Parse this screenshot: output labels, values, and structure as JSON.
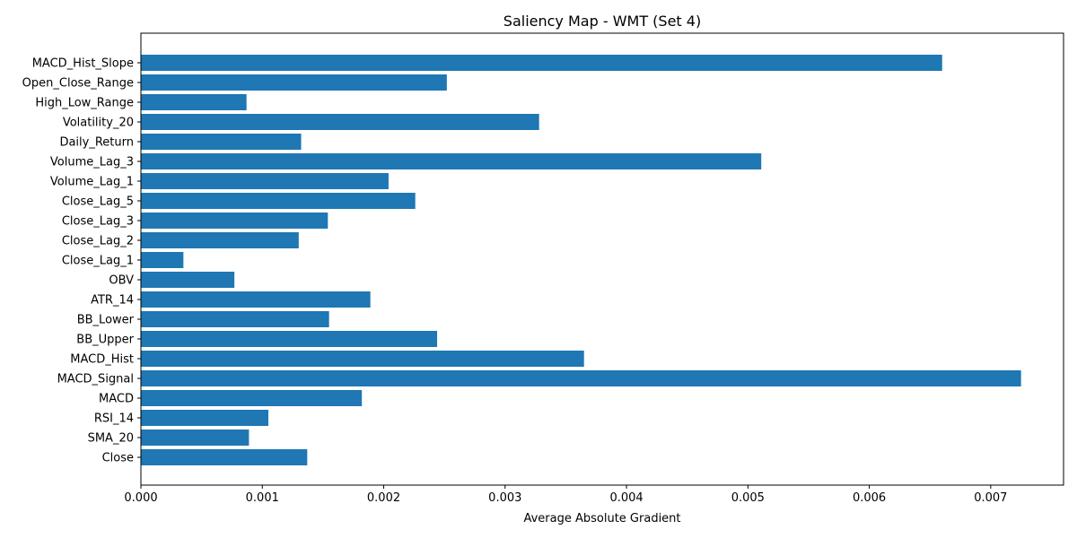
{
  "chart_data": {
    "type": "bar",
    "orientation": "horizontal",
    "title": "Saliency Map - WMT (Set 4)",
    "xlabel": "Average Absolute Gradient",
    "ylabel": "",
    "xlim": [
      0,
      0.0076
    ],
    "xticks": [
      "0.000",
      "0.001",
      "0.002",
      "0.003",
      "0.004",
      "0.005",
      "0.006",
      "0.007"
    ],
    "bar_color": "#1f77b4",
    "grid": false,
    "categories": [
      "Close",
      "SMA_20",
      "RSI_14",
      "MACD",
      "MACD_Signal",
      "MACD_Hist",
      "BB_Upper",
      "BB_Lower",
      "ATR_14",
      "OBV",
      "Close_Lag_1",
      "Close_Lag_2",
      "Close_Lag_3",
      "Close_Lag_5",
      "Volume_Lag_1",
      "Volume_Lag_3",
      "Daily_Return",
      "Volatility_20",
      "High_Low_Range",
      "Open_Close_Range",
      "MACD_Hist_Slope"
    ],
    "values": [
      0.00137,
      0.00089,
      0.00105,
      0.00182,
      0.00725,
      0.00365,
      0.00244,
      0.00155,
      0.00189,
      0.00077,
      0.00035,
      0.0013,
      0.00154,
      0.00226,
      0.00204,
      0.00511,
      0.00132,
      0.00328,
      0.00087,
      0.00252,
      0.0066
    ]
  }
}
